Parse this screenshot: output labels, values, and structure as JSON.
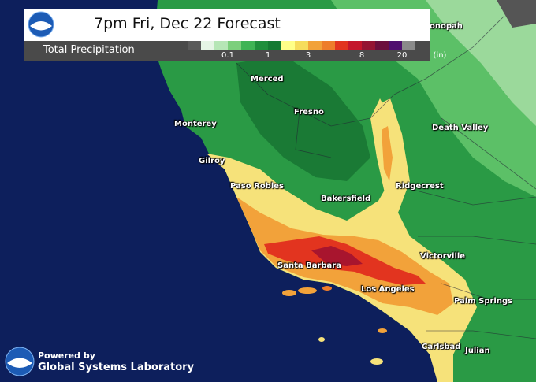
{
  "header": {
    "title": "7pm Fri, Dec 22 Forecast",
    "legend_title": "Total Precipitation",
    "legend_ticks": [
      "0.1",
      "1",
      "3",
      "8",
      "20",
      "(in)"
    ]
  },
  "legend_colors": [
    "#5a5a5a",
    "#e6f5e6",
    "#b6e6b6",
    "#7ccf7c",
    "#3fb455",
    "#1f8f3c",
    "#157a33",
    "#ffff88",
    "#f6dc5c",
    "#f2a23a",
    "#ee7d2b",
    "#e2341f",
    "#c4162c",
    "#951433",
    "#6b0f3d",
    "#4e0f6e",
    "#8a8a8a"
  ],
  "map": {
    "ocean_color": "#0d1f5c",
    "cities": {
      "tonopah": "onopah",
      "merced": "Merced",
      "fresno": "Fresno",
      "monterey": "Monterey",
      "death_valley": "Death Valley",
      "gilroy": "Gilroy",
      "paso_robles": "Paso Robles",
      "bakersfield": "Bakersfield",
      "ridgecrest": "Ridgecrest",
      "victorville": "Victorville",
      "santa_barbara": "Santa Barbara",
      "los_angeles": "Los Angeles",
      "palm_springs": "Palm Springs",
      "carlsbad": "Carlsbad",
      "julian": "Julian"
    }
  },
  "credit": {
    "line1": "Powered by",
    "line2": "Global Systems Laboratory"
  }
}
